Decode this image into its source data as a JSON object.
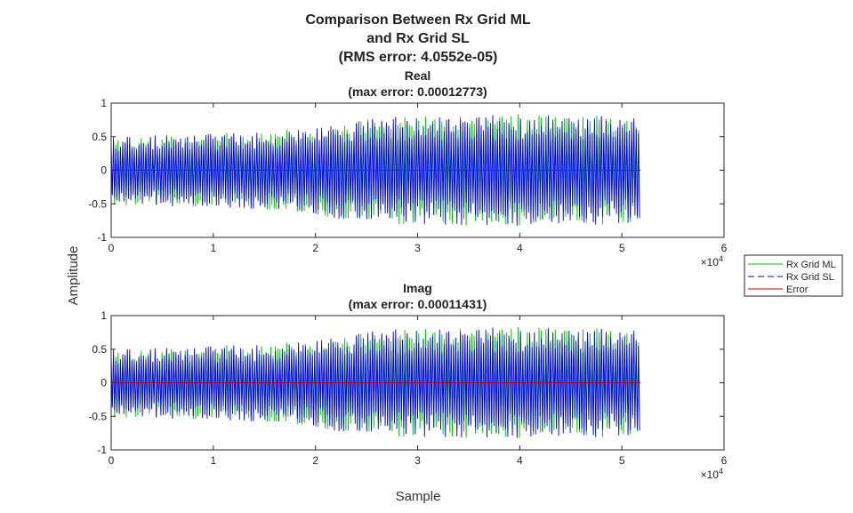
{
  "figure_title": [
    "Comparison Between Rx Grid ML",
    "and Rx Grid SL",
    "(RMS error: 4.0552e-05)"
  ],
  "shared_ylabel": "Amplitude",
  "shared_xlabel": "Sample",
  "legend": {
    "placement": "right, between subplots",
    "entries": [
      {
        "label": "Rx Grid ML",
        "color": "#00c000",
        "style": "solid"
      },
      {
        "label": "Rx Grid SL",
        "color": "#0000ff",
        "style": "dashed"
      },
      {
        "label": "Error",
        "color": "#c00000",
        "style": "solid"
      }
    ]
  },
  "chart_data": [
    {
      "type": "line",
      "title": [
        "Real",
        "(max error: 0.00012773)"
      ],
      "xlim": [
        0,
        60000
      ],
      "ylim": [
        -1,
        1
      ],
      "xticks": [
        "0",
        "1",
        "2",
        "3",
        "4",
        "5",
        "6"
      ],
      "x_exponent": "×10",
      "x_exponent_power": "4",
      "yticks": [
        "1",
        "0.5",
        "0",
        "-0.5",
        "-1"
      ],
      "signal_end_sample": 51840,
      "envelope": {
        "x": [
          0,
          10000,
          17000,
          22000,
          28000,
          35000,
          40000,
          45000,
          51840
        ],
        "amplitude": [
          0.52,
          0.55,
          0.6,
          0.72,
          0.8,
          0.82,
          0.83,
          0.82,
          0.8
        ]
      },
      "series": [
        {
          "name": "Rx Grid ML",
          "color": "#00c000"
        },
        {
          "name": "Rx Grid SL",
          "color": "#0000ff"
        },
        {
          "name": "Error",
          "color": "#c00000",
          "value": 0
        }
      ]
    },
    {
      "type": "line",
      "title": [
        "Imag",
        "(max error: 0.00011431)"
      ],
      "xlim": [
        0,
        60000
      ],
      "ylim": [
        -1,
        1
      ],
      "xticks": [
        "0",
        "1",
        "2",
        "3",
        "4",
        "5",
        "6"
      ],
      "x_exponent": "×10",
      "x_exponent_power": "4",
      "yticks": [
        "1",
        "0.5",
        "0",
        "-0.5",
        "-1"
      ],
      "signal_end_sample": 51840,
      "envelope": {
        "x": [
          0,
          10000,
          17000,
          22000,
          28000,
          35000,
          40000,
          45000,
          51840
        ],
        "amplitude": [
          0.52,
          0.55,
          0.6,
          0.72,
          0.8,
          0.82,
          0.83,
          0.82,
          0.8
        ]
      },
      "series": [
        {
          "name": "Rx Grid ML",
          "color": "#00c000"
        },
        {
          "name": "Rx Grid SL",
          "color": "#0000ff"
        },
        {
          "name": "Error",
          "color": "#c00000",
          "value": 0
        }
      ]
    }
  ]
}
